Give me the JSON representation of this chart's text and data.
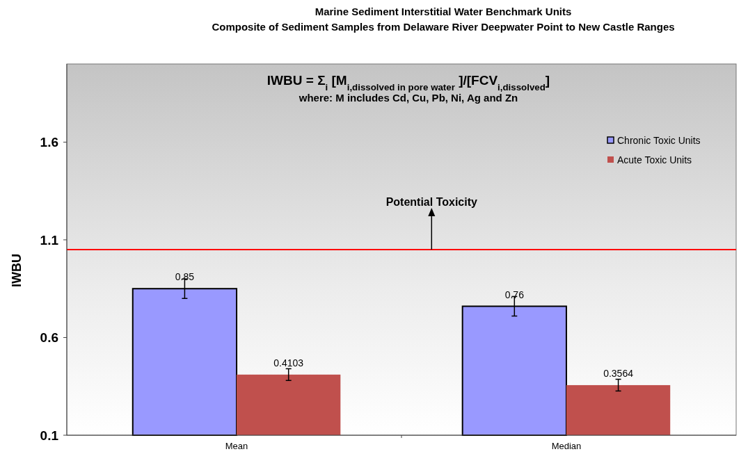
{
  "chart_data": {
    "type": "bar",
    "title": "Marine Sediment Interstitial Water Benchmark Units",
    "subtitle": "Composite of Sediment Samples from Delaware River Deepwater Point to New Castle Ranges",
    "ylabel": "IWBU",
    "categories": [
      "Mean",
      "Median"
    ],
    "series": [
      {
        "name": "Chronic Toxic Units",
        "color": "#9999ff",
        "values": [
          0.85,
          0.76
        ],
        "errors": [
          0.05,
          0.05
        ]
      },
      {
        "name": "Acute Toxic Units",
        "color": "#c0504d",
        "values": [
          0.4103,
          0.3564
        ],
        "errors": [
          0.03,
          0.03
        ]
      }
    ],
    "data_labels": true,
    "ylim": [
      0.1,
      2.0
    ],
    "yticks": [
      0.1,
      0.6,
      1.1,
      1.6
    ],
    "grid": false,
    "legend": "top right",
    "ref_lines": [
      {
        "axis": "y",
        "value": 1.05,
        "label": "Potential Toxicity",
        "color": "#ff0000"
      }
    ],
    "annotations": [
      "IWBU = Σ$_{i}$ [M$_{i,dissolved in pore water}$ ]/[FCV$_{i,dissolved}$]",
      "where:  M includes Cd, Cu, Pb, Ni, Ag and Zn"
    ]
  }
}
